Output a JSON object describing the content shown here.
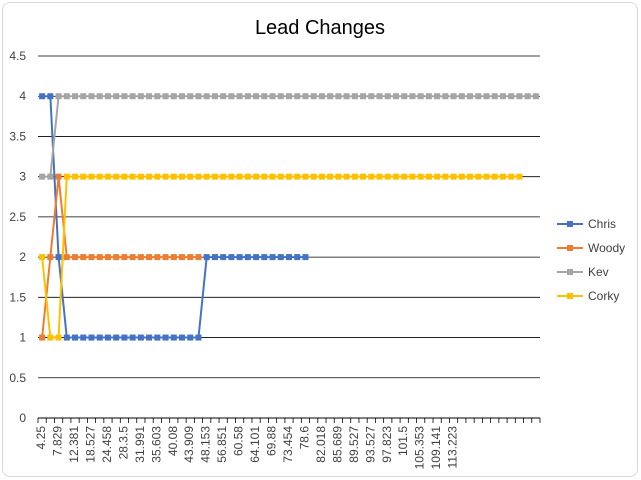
{
  "chart_data": {
    "type": "line",
    "title": "Lead Changes",
    "xlabel": "",
    "ylabel": "",
    "ylim": [
      0,
      4.5
    ],
    "yticks": [
      0,
      0.5,
      1,
      1.5,
      2,
      2.5,
      3,
      3.5,
      4,
      4.5
    ],
    "grid": "horizontal",
    "legend_position": "right",
    "x_tick_labels": [
      "4.25",
      "7.829",
      "12.381",
      "18.527",
      "24.458",
      "28.3.5",
      "31.991",
      "35.603",
      "40.08",
      "43.909",
      "48.153",
      "56.851",
      "60.58",
      "64.101",
      "69.88",
      "73.454",
      "78.6",
      "82.018",
      "85.689",
      "89.527",
      "93.527",
      "97.823",
      "101.5",
      "105.353",
      "109.141",
      "113.223"
    ],
    "point_count": 61,
    "series": [
      {
        "name": "Chris",
        "color": "#4472C4",
        "values": [
          4,
          4,
          2,
          1,
          1,
          1,
          1,
          1,
          1,
          1,
          1,
          1,
          1,
          1,
          1,
          1,
          1,
          1,
          1,
          1,
          2,
          2,
          2,
          2,
          2,
          2,
          2,
          2,
          2,
          2,
          2,
          2,
          2
        ]
      },
      {
        "name": "Woody",
        "color": "#ED7D31",
        "values": [
          1,
          2,
          3,
          2,
          2,
          2,
          2,
          2,
          2,
          2,
          2,
          2,
          2,
          2,
          2,
          2,
          2,
          2,
          2,
          2
        ]
      },
      {
        "name": "Kev",
        "color": "#A5A5A5",
        "values": [
          3,
          3,
          4,
          4,
          4,
          4,
          4,
          4,
          4,
          4,
          4,
          4,
          4,
          4,
          4,
          4,
          4,
          4,
          4,
          4,
          4,
          4,
          4,
          4,
          4,
          4,
          4,
          4,
          4,
          4,
          4,
          4,
          4,
          4,
          4,
          4,
          4,
          4,
          4,
          4,
          4,
          4,
          4,
          4,
          4,
          4,
          4,
          4,
          4,
          4,
          4,
          4,
          4,
          4,
          4,
          4,
          4,
          4,
          4,
          4,
          4
        ]
      },
      {
        "name": "Corky",
        "color": "#FFC000",
        "values": [
          2,
          1,
          1,
          3,
          3,
          3,
          3,
          3,
          3,
          3,
          3,
          3,
          3,
          3,
          3,
          3,
          3,
          3,
          3,
          3,
          3,
          3,
          3,
          3,
          3,
          3,
          3,
          3,
          3,
          3,
          3,
          3,
          3,
          3,
          3,
          3,
          3,
          3,
          3,
          3,
          3,
          3,
          3,
          3,
          3,
          3,
          3,
          3,
          3,
          3,
          3,
          3,
          3,
          3,
          3,
          3,
          3,
          3,
          3
        ]
      }
    ]
  }
}
